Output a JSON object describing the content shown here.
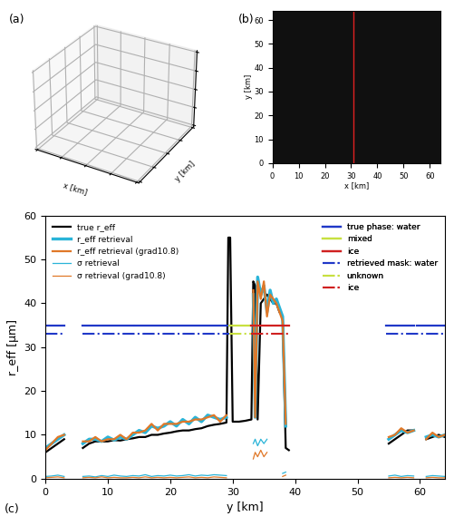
{
  "chart_data": [
    {
      "type": "surface3d",
      "title": "(a)",
      "x_label": "x [km]",
      "y_label": "y [km]",
      "tick_labels": false
    },
    {
      "type": "image",
      "title": "(b)",
      "x_label": "x [km]",
      "y_label": "y [km]",
      "xlim": [
        0,
        64
      ],
      "ylim": [
        0,
        64
      ],
      "xticks": [
        0,
        10,
        20,
        30,
        40,
        50,
        60
      ],
      "yticks": [
        0,
        10,
        20,
        30,
        40,
        50,
        60
      ],
      "marker_x": 31,
      "color": "#e02020"
    },
    {
      "type": "line",
      "title": "(c)",
      "x_label": "y [km]",
      "y_label": "r_eff [µm]",
      "xlim": [
        0,
        64
      ],
      "ylim": [
        0,
        60
      ],
      "xticks": [
        0,
        10,
        20,
        30,
        40,
        50,
        60
      ],
      "yticks": [
        0,
        10,
        20,
        30,
        40,
        50,
        60
      ],
      "legend": "upper left",
      "x": [
        0,
        1,
        2,
        3,
        4,
        5,
        6,
        7,
        8,
        9,
        10,
        11,
        12,
        13,
        14,
        15,
        16,
        17,
        18,
        19,
        20,
        21,
        22,
        23,
        24,
        25,
        26,
        27,
        28,
        29,
        29.3,
        29.6,
        30,
        31,
        32,
        33,
        33.3,
        33.6,
        34,
        34.5,
        35,
        35.5,
        36,
        36.5,
        37,
        37.5,
        38,
        38.5,
        39,
        40,
        41,
        42,
        43,
        44,
        45,
        46,
        47,
        48,
        49,
        50,
        51,
        52,
        53,
        54,
        55,
        56,
        57,
        58,
        59,
        60,
        61,
        62,
        63,
        64
      ],
      "series": [
        {
          "name": "true r_eff",
          "color": "#000000",
          "line_style": "solid",
          "values": [
            6,
            7,
            8,
            9,
            null,
            null,
            7,
            8,
            8.5,
            8.5,
            8.5,
            8.8,
            8.7,
            9,
            9.2,
            9.5,
            9.5,
            10,
            10,
            10.3,
            10.5,
            10.8,
            11,
            11,
            11.3,
            11.5,
            12,
            12.3,
            12.5,
            12.8,
            55,
            55,
            13,
            13,
            13.2,
            13.5,
            45,
            44,
            13.5,
            40,
            41,
            42,
            41,
            40,
            40,
            38,
            37,
            7,
            6.5,
            null,
            null,
            null,
            null,
            null,
            null,
            null,
            null,
            null,
            null,
            null,
            null,
            null,
            null,
            null,
            8,
            9,
            10,
            11,
            11,
            null,
            9,
            9.5,
            10,
            9.5
          ]
        },
        {
          "name": "r_eff retrieval",
          "color": "#2ab4d8",
          "line_style": "solid",
          "values": [
            7,
            8,
            9,
            10,
            null,
            null,
            8,
            9,
            9,
            8.5,
            9.5,
            8.8,
            9.5,
            9,
            10,
            11,
            10.5,
            12,
            11.5,
            12,
            13,
            12,
            13.5,
            12.5,
            14,
            13,
            14.5,
            14,
            13.5,
            14,
            null,
            null,
            null,
            null,
            null,
            null,
            42,
            14,
            46,
            42,
            44,
            38,
            43,
            40,
            41,
            39,
            37,
            12,
            null,
            null,
            null,
            null,
            null,
            null,
            null,
            null,
            null,
            null,
            null,
            null,
            null,
            null,
            null,
            null,
            9,
            10,
            11,
            10.5,
            11,
            null,
            9.5,
            10,
            9.5,
            10
          ]
        },
        {
          "name": "r_eff retrieval (grad10.8)",
          "color": "#e07828",
          "line_style": "solid",
          "values": [
            6.5,
            8,
            9.5,
            10,
            null,
            null,
            8.5,
            8.5,
            9.5,
            8.5,
            9,
            9,
            10,
            9,
            10.5,
            10.5,
            11,
            12.5,
            11,
            12.5,
            12.5,
            12.5,
            13,
            13,
            13.5,
            13.5,
            14,
            14.5,
            13,
            14.5,
            null,
            null,
            null,
            null,
            null,
            null,
            43,
            14,
            45,
            41,
            45,
            37,
            42,
            41,
            40,
            38,
            36,
            12.5,
            null,
            null,
            null,
            null,
            null,
            null,
            null,
            null,
            null,
            null,
            null,
            null,
            null,
            null,
            null,
            null,
            9.5,
            10,
            11.5,
            10.5,
            11,
            null,
            9,
            10.5,
            9.5,
            10
          ]
        },
        {
          "name": "σ retrieval",
          "color": "#2ab4d8",
          "line_style": "thin",
          "values": [
            0.5,
            0.6,
            0.8,
            0.5,
            null,
            null,
            0.5,
            0.6,
            0.4,
            0.7,
            0.5,
            0.8,
            0.6,
            0.5,
            0.7,
            0.6,
            0.9,
            0.5,
            0.7,
            0.6,
            0.8,
            0.6,
            0.7,
            0.9,
            0.6,
            0.8,
            0.7,
            0.9,
            0.8,
            0.7,
            null,
            null,
            null,
            null,
            null,
            null,
            8,
            9,
            7.5,
            9,
            8,
            9,
            null,
            null,
            null,
            null,
            1.2,
            1.5,
            null,
            null,
            null,
            null,
            null,
            null,
            null,
            null,
            null,
            null,
            null,
            null,
            null,
            null,
            null,
            null,
            0.6,
            0.8,
            0.5,
            0.7,
            0.6,
            null,
            0.5,
            0.7,
            0.6,
            0.5
          ]
        },
        {
          "name": "σ retrieval (grad10.8)",
          "color": "#e07828",
          "line_style": "thin",
          "values": [
            0.2,
            0.3,
            0.4,
            0.2,
            null,
            null,
            0.2,
            0.3,
            0.2,
            0.4,
            0.2,
            0.3,
            0.2,
            0.2,
            0.3,
            0.2,
            0.4,
            0.2,
            0.3,
            0.2,
            0.3,
            0.2,
            0.3,
            0.4,
            0.2,
            0.3,
            0.2,
            0.4,
            0.3,
            0.2,
            null,
            null,
            null,
            null,
            null,
            null,
            4.5,
            6,
            5,
            6.5,
            5,
            6,
            null,
            null,
            null,
            null,
            0.5,
            0.8,
            null,
            null,
            null,
            null,
            null,
            null,
            null,
            null,
            null,
            null,
            null,
            null,
            null,
            null,
            null,
            null,
            0.2,
            0.3,
            0.2,
            0.3,
            0.2,
            null,
            0.2,
            0.3,
            0.2,
            0.2
          ]
        },
        {
          "name": "true phase: water",
          "color": "#2038c8",
          "line_style": "solid",
          "legend": "upper right",
          "x": [
            0,
            3,
            4.5,
            6,
            14,
            14.15,
            14.3,
            29.5,
            42,
            54.5,
            59,
            59.2,
            59.5,
            64
          ],
          "values": [
            35,
            35,
            null,
            35,
            35,
            null,
            35,
            35,
            null,
            35,
            35,
            null,
            35,
            35
          ]
        },
        {
          "name": "mixed",
          "color": "#c8e040",
          "line_style": "solid",
          "legend": "upper right",
          "x": [
            29.5,
            33
          ],
          "values": [
            35,
            35
          ]
        },
        {
          "name": "ice",
          "color": "#d02020",
          "line_style": "solid",
          "legend": "upper right",
          "x": [
            33,
            39
          ],
          "values": [
            35,
            35
          ]
        },
        {
          "name": "retrieved mask: water",
          "color": "#2038c8",
          "line_style": "dashdot",
          "legend": "upper right",
          "x": [
            0,
            3,
            4.5,
            6,
            29.5,
            42,
            54.5,
            64
          ],
          "values": [
            33,
            33,
            null,
            33,
            33,
            null,
            33,
            33
          ]
        },
        {
          "name": "unknown",
          "color": "#c8e040",
          "line_style": "dashdot",
          "legend": "upper right",
          "x": [
            29.5,
            33
          ],
          "values": [
            33,
            33
          ]
        },
        {
          "name": "ice",
          "color": "#d02020",
          "line_style": "dashdot",
          "legend": "upper right",
          "x": [
            33,
            39
          ],
          "values": [
            33,
            33
          ]
        }
      ]
    }
  ]
}
